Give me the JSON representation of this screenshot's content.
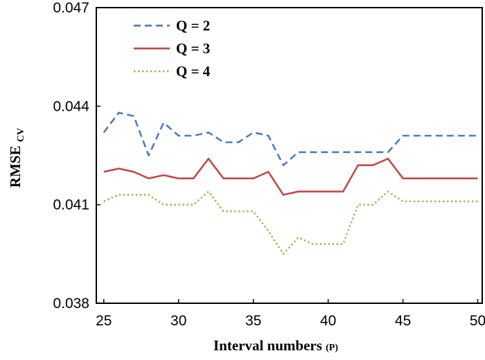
{
  "chart_data": {
    "type": "line",
    "title": "",
    "xlabel": "Interval numbers",
    "xlabel_suffix": "(P)",
    "ylabel_main": "RMSE",
    "ylabel_sub": "CV",
    "xlim": [
      24.5,
      50.3
    ],
    "ylim": [
      0.038,
      0.047
    ],
    "x_ticks": [
      25,
      30,
      35,
      40,
      45,
      50
    ],
    "x_tick_labels": [
      "25",
      "30",
      "35",
      "40",
      "45",
      "50"
    ],
    "y_ticks": [
      0.038,
      0.041,
      0.044,
      0.047
    ],
    "y_tick_labels": [
      "0.038",
      "0.041",
      "0.044",
      "0.047"
    ],
    "grid": false,
    "legend_position": "top-left",
    "x": [
      25,
      26,
      27,
      28,
      29,
      30,
      31,
      32,
      33,
      34,
      35,
      36,
      37,
      38,
      39,
      40,
      41,
      42,
      43,
      44,
      45,
      46,
      47,
      48,
      49,
      50
    ],
    "series": [
      {
        "name": "Q = 2",
        "color": "#4a7ebb",
        "style": "dashed",
        "values": [
          0.0432,
          0.0438,
          0.0437,
          0.0425,
          0.0435,
          0.0431,
          0.0431,
          0.0432,
          0.0429,
          0.0429,
          0.0432,
          0.0431,
          0.0422,
          0.0426,
          0.0426,
          0.0426,
          0.0426,
          0.0426,
          0.0426,
          0.0426,
          0.0431,
          0.0431,
          0.0431,
          0.0431,
          0.0431,
          0.0431
        ]
      },
      {
        "name": "Q = 3",
        "color": "#be4b48",
        "style": "solid",
        "values": [
          0.042,
          0.0421,
          0.042,
          0.0418,
          0.0419,
          0.0418,
          0.0418,
          0.0424,
          0.0418,
          0.0418,
          0.0418,
          0.042,
          0.0413,
          0.0414,
          0.0414,
          0.0414,
          0.0414,
          0.0422,
          0.0422,
          0.0424,
          0.0418,
          0.0418,
          0.0418,
          0.0418,
          0.0418,
          0.0418
        ]
      },
      {
        "name": "Q = 4",
        "color": "#9bbb59",
        "style": "dotted",
        "values": [
          0.0411,
          0.0413,
          0.0413,
          0.0413,
          0.041,
          0.041,
          0.041,
          0.0414,
          0.0408,
          0.0408,
          0.0408,
          0.0402,
          0.0395,
          0.04,
          0.0398,
          0.0398,
          0.0398,
          0.041,
          0.041,
          0.0414,
          0.0411,
          0.0411,
          0.0411,
          0.0411,
          0.0411,
          0.0411
        ]
      }
    ]
  }
}
